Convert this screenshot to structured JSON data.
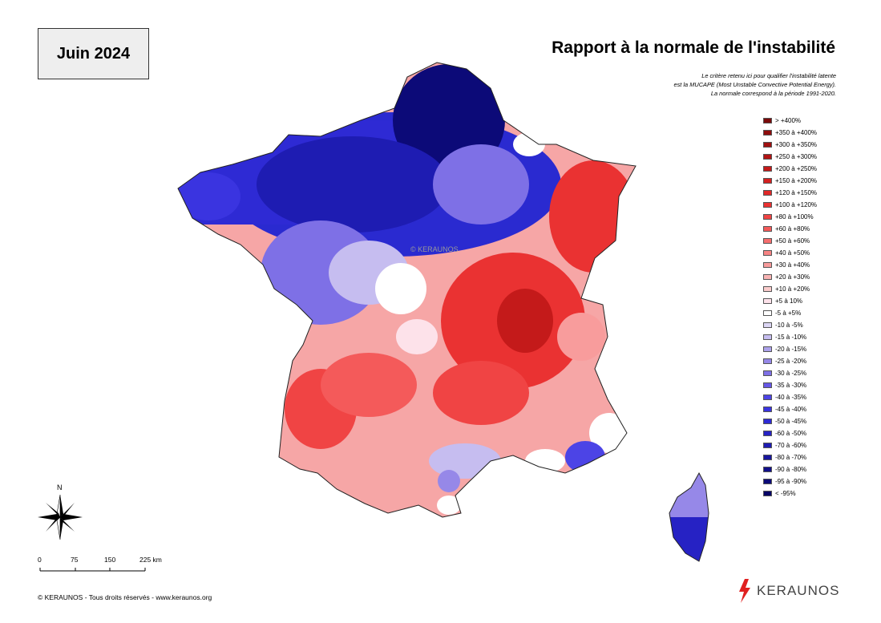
{
  "title": "Rapport à la normale de l'instabilité",
  "date_label": "Juin 2024",
  "note_lines": [
    "Le critère retenu ici pour qualifier l'instabilité latente",
    "est la MUCAPE (Most Unstable Convective Potential Energy).",
    "La normale correspond à la période 1991-2020."
  ],
  "legend": [
    {
      "label": "> +400%",
      "color": "#7a0a0a"
    },
    {
      "label": "+350 à +400%",
      "color": "#8e0d0d"
    },
    {
      "label": "+300 à +350%",
      "color": "#a01010"
    },
    {
      "label": "+250 à +300%",
      "color": "#b21414"
    },
    {
      "label": "+200 à +250%",
      "color": "#c41a1a"
    },
    {
      "label": "+150 à +200%",
      "color": "#d42020"
    },
    {
      "label": "+120 à +150%",
      "color": "#e02828"
    },
    {
      "label": "+100 à +120%",
      "color": "#ea3232"
    },
    {
      "label": "+80 à +100%",
      "color": "#f04444"
    },
    {
      "label": "+60 à +80%",
      "color": "#f45a5a"
    },
    {
      "label": "+50 à +60%",
      "color": "#f66e6e"
    },
    {
      "label": "+40 à +50%",
      "color": "#f78484"
    },
    {
      "label": "+30 à +40%",
      "color": "#f89c9c"
    },
    {
      "label": "+20 à +30%",
      "color": "#f9b4b4"
    },
    {
      "label": "+10 à +20%",
      "color": "#fbcccc"
    },
    {
      "label": "+5 à 10%",
      "color": "#fde2ea"
    },
    {
      "label": "-5 à +5%",
      "color": "#ffffff"
    },
    {
      "label": "-10 à -5%",
      "color": "#dcd6f4"
    },
    {
      "label": "-15 à -10%",
      "color": "#c6bdf0"
    },
    {
      "label": "-20 à -15%",
      "color": "#ada2ec"
    },
    {
      "label": "-25 à -20%",
      "color": "#9688e8"
    },
    {
      "label": "-30 à -25%",
      "color": "#7e70e6"
    },
    {
      "label": "-35 à -30%",
      "color": "#6658e6"
    },
    {
      "label": "-40 à -35%",
      "color": "#4c44e6"
    },
    {
      "label": "-45 à -40%",
      "color": "#3a34e0"
    },
    {
      "label": "-50 à -45%",
      "color": "#2e2ad4"
    },
    {
      "label": "-60 à -50%",
      "color": "#2622c4"
    },
    {
      "label": "-70 à -60%",
      "color": "#1e1cb2"
    },
    {
      "label": "-80 à -70%",
      "color": "#18169e"
    },
    {
      "label": "-90 à -80%",
      "color": "#12108a"
    },
    {
      "label": "-95 à -90%",
      "color": "#0c0a78"
    },
    {
      "label": "< -95%",
      "color": "#070566"
    }
  ],
  "compass_label": "N",
  "scale": {
    "ticks": [
      "0",
      "75",
      "150",
      "225 km"
    ]
  },
  "copyright": "© KERAUNOS - Tous droits réservés - www.keraunos.org",
  "brand": "KERAUNOS",
  "watermark": "© KERAUNOS"
}
